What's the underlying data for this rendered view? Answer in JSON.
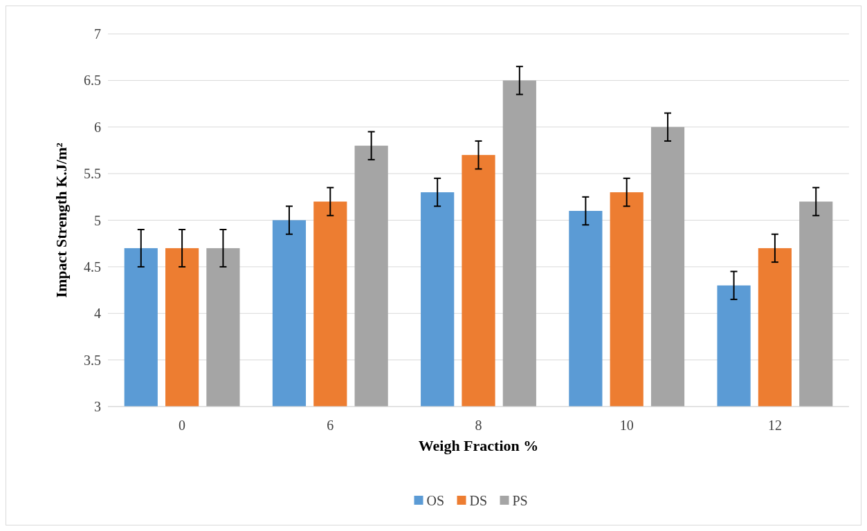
{
  "chart_data": {
    "type": "bar",
    "xlabel": "Weigh Fraction %",
    "ylabel": "Impact Strength K.J/m²",
    "categories": [
      "0",
      "6",
      "8",
      "10",
      "12"
    ],
    "series": [
      {
        "name": "OS",
        "color": "#5b9bd5",
        "values": [
          4.7,
          5.0,
          5.3,
          5.1,
          4.3
        ],
        "errors": [
          0.2,
          0.15,
          0.15,
          0.15,
          0.15
        ]
      },
      {
        "name": "DS",
        "color": "#ed7d31",
        "values": [
          4.7,
          5.2,
          5.7,
          5.3,
          4.7
        ],
        "errors": [
          0.2,
          0.15,
          0.15,
          0.15,
          0.15
        ]
      },
      {
        "name": "PS",
        "color": "#a5a5a5",
        "values": [
          4.7,
          5.8,
          6.5,
          6.0,
          5.2
        ],
        "errors": [
          0.2,
          0.15,
          0.15,
          0.15,
          0.15
        ]
      }
    ],
    "ylim": [
      3,
      7
    ],
    "yticks": [
      3,
      3.5,
      4,
      4.5,
      5,
      5.5,
      6,
      6.5,
      7
    ],
    "grid": "y",
    "legend": "bottom"
  }
}
